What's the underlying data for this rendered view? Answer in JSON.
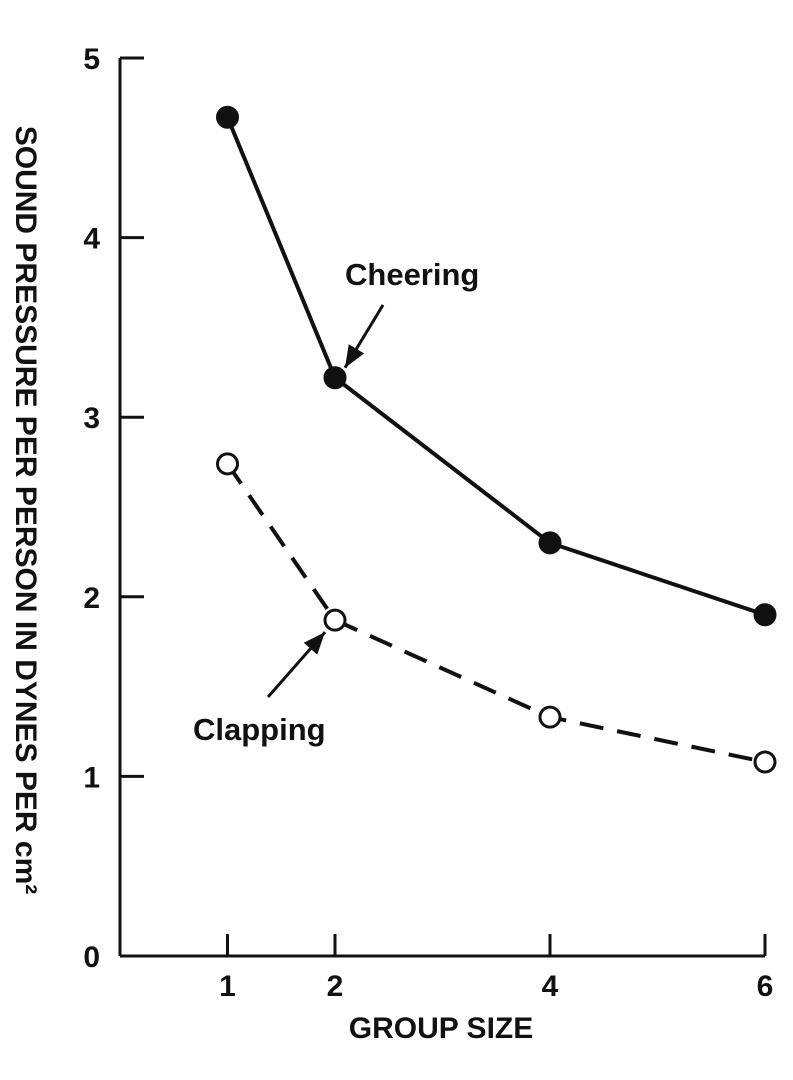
{
  "chart_data": {
    "type": "line",
    "title": "",
    "xlabel": "GROUP SIZE",
    "ylabel": "SOUND PRESSURE PER PERSON IN DYNES PER cm²",
    "x": [
      1,
      2,
      4,
      6
    ],
    "x_ticks": [
      "1",
      "2",
      "4",
      "6"
    ],
    "y_ticks": [
      "0",
      "1",
      "2",
      "3",
      "4",
      "5"
    ],
    "xlim": [
      0,
      6
    ],
    "ylim": [
      0,
      5
    ],
    "grid": false,
    "series": [
      {
        "name": "Cheering",
        "values": [
          4.67,
          3.22,
          2.3,
          1.9
        ],
        "line_style": "solid",
        "marker": "filled-circle"
      },
      {
        "name": "Clapping",
        "values": [
          2.74,
          1.87,
          1.33,
          1.08
        ],
        "line_style": "dashed",
        "marker": "open-circle"
      }
    ],
    "annotations": [
      {
        "text": "Cheering",
        "points_to_series": "Cheering",
        "points_to_x": 2
      },
      {
        "text": "Clapping",
        "points_to_series": "Clapping",
        "points_to_x": 2
      }
    ],
    "colors": {
      "ink": "#111111",
      "background": "#ffffff"
    }
  }
}
